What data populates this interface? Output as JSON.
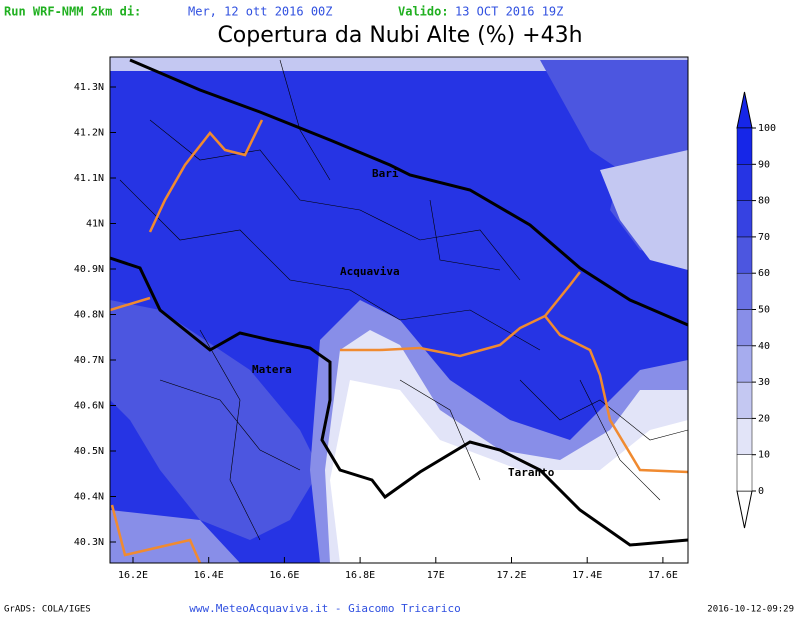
{
  "header": {
    "run_label": "Run WRF-NMM 2km di:",
    "run_date": "Mer, 12 ott 2016 00Z",
    "valid_label": "Valido:",
    "valid_date": "13 OCT 2016 19Z"
  },
  "title": "Copertura da Nubi Alte (%) +43h",
  "lat_ticks": [
    "41.3N",
    "41.2N",
    "41.1N",
    "41N",
    "40.9N",
    "40.8N",
    "40.7N",
    "40.6N",
    "40.5N",
    "40.4N",
    "40.3N"
  ],
  "lon_ticks": [
    "16.2E",
    "16.4E",
    "16.6E",
    "16.8E",
    "17E",
    "17.2E",
    "17.4E",
    "17.6E"
  ],
  "places": [
    "Bari",
    "Acquaviva",
    "Matera",
    "Taranto"
  ],
  "colorbar": {
    "levels": [
      0,
      10,
      20,
      30,
      40,
      50,
      60,
      70,
      80,
      90,
      100
    ],
    "colors": [
      "#ffffff",
      "#e2e4f8",
      "#c4c8f2",
      "#a6acee",
      "#888ee8",
      "#6a72e4",
      "#4c56e0",
      "#3642e2",
      "#2634e4",
      "#1626e8"
    ]
  },
  "footer": {
    "left": "GrADS: COLA/IGES",
    "center": "www.MeteoAcquaviva.it - Giacomo Tricarico",
    "right": "2016-10-12-09:29"
  }
}
